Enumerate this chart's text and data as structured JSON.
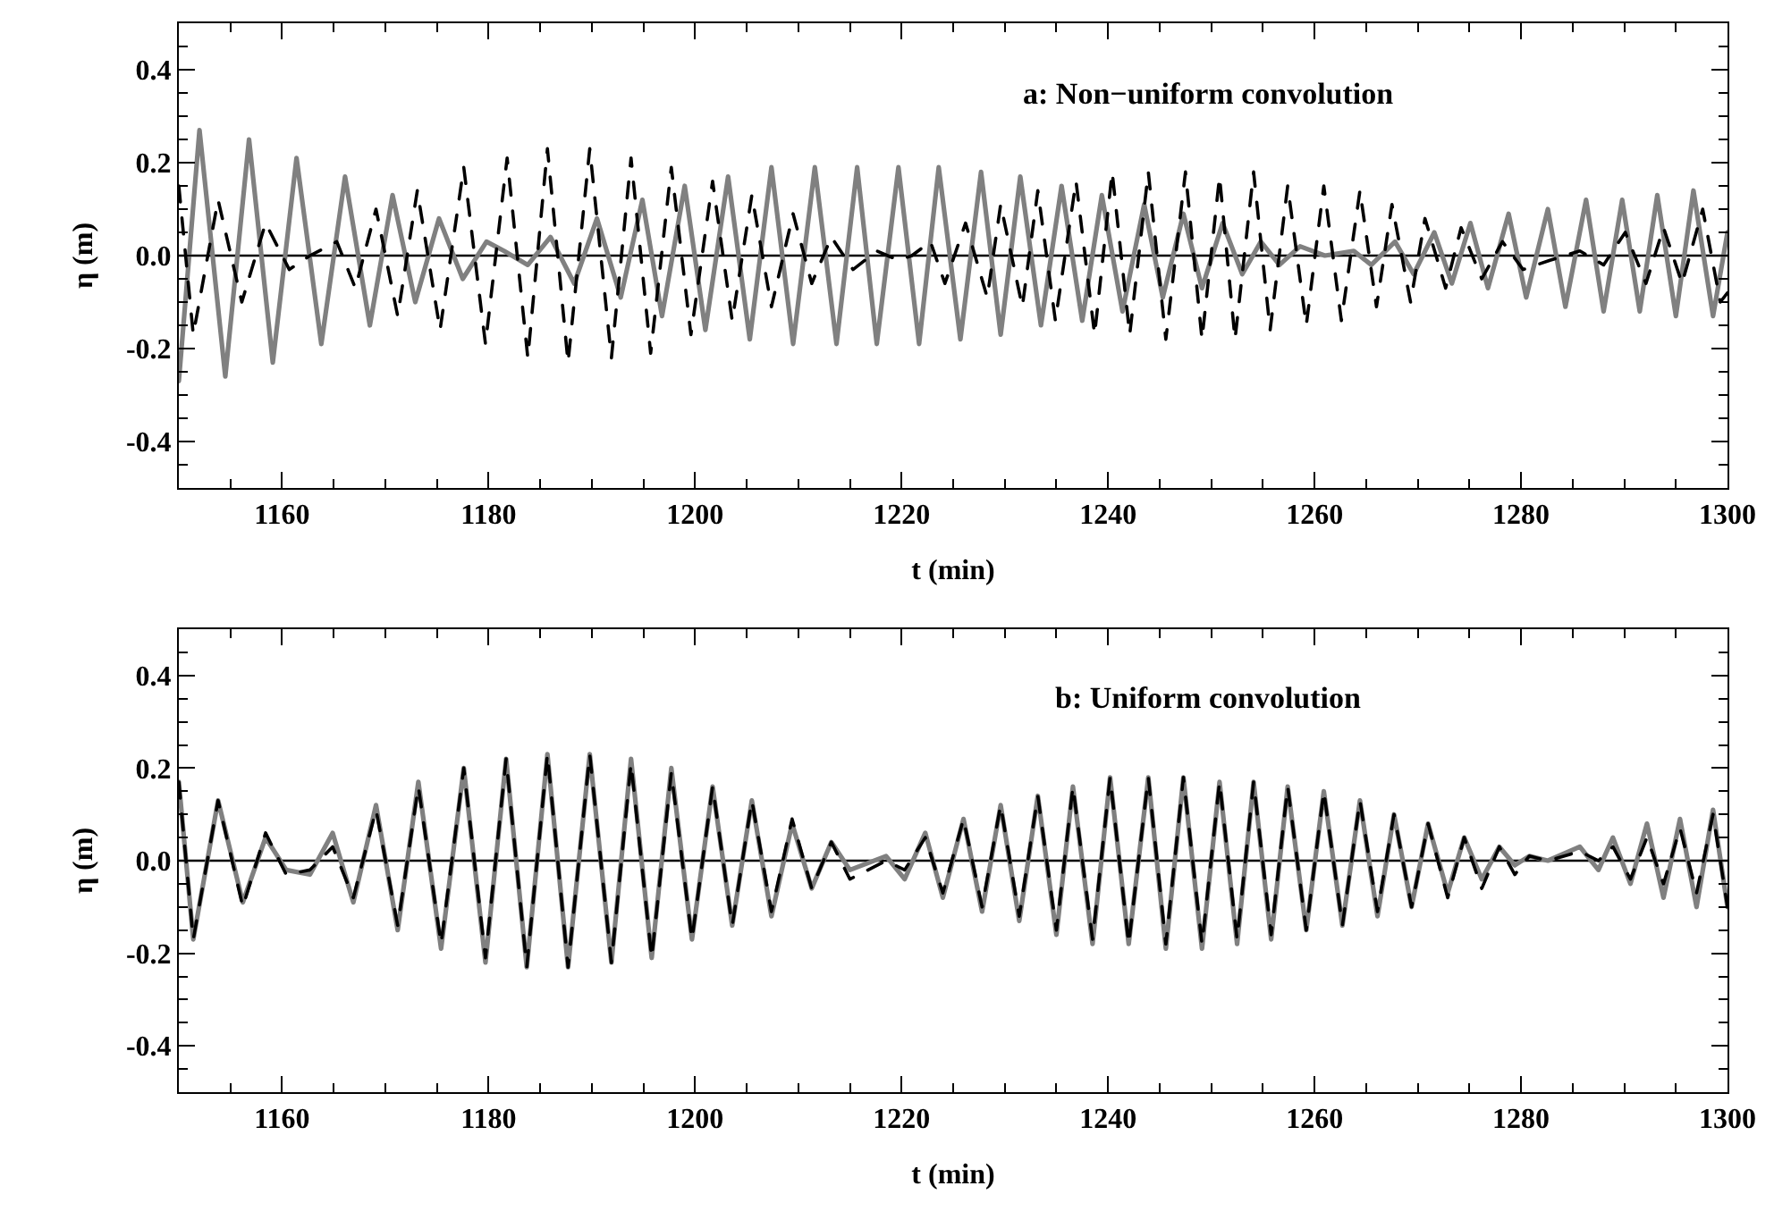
{
  "chart_data": [
    {
      "type": "line",
      "annotations": [
        "a: Non−uniform convolution"
      ],
      "xlabel": "t (min)",
      "ylabel": "η (m)",
      "xlim": [
        1150,
        1300
      ],
      "ylim": [
        -0.5,
        0.5
      ],
      "xticks": [
        {
          "value": 1155,
          "label": null
        },
        1160,
        {
          "value": 1165,
          "label": null
        },
        {
          "value": 1170,
          "label": null
        },
        {
          "value": 1175,
          "label": null
        },
        1180,
        {
          "value": 1185,
          "label": null
        },
        {
          "value": 1190,
          "label": null
        },
        {
          "value": 1195,
          "label": null
        },
        1200,
        {
          "value": 1205,
          "label": null
        },
        {
          "value": 1210,
          "label": null
        },
        {
          "value": 1215,
          "label": null
        },
        1220,
        {
          "value": 1225,
          "label": null
        },
        {
          "value": 1230,
          "label": null
        },
        {
          "value": 1235,
          "label": null
        },
        1240,
        {
          "value": 1245,
          "label": null
        },
        {
          "value": 1250,
          "label": null
        },
        {
          "value": 1255,
          "label": null
        },
        1260,
        {
          "value": 1265,
          "label": null
        },
        {
          "value": 1270,
          "label": null
        },
        {
          "value": 1275,
          "label": null
        },
        1280,
        {
          "value": 1285,
          "label": null
        },
        {
          "value": 1290,
          "label": null
        },
        {
          "value": 1295,
          "label": null
        },
        1300
      ],
      "yticks": [
        {
          "value": -0.45,
          "label": null
        },
        -0.4,
        {
          "value": -0.35,
          "label": null
        },
        {
          "value": -0.3,
          "label": null
        },
        {
          "value": -0.25,
          "label": null
        },
        -0.2,
        {
          "value": -0.15,
          "label": null
        },
        {
          "value": -0.1,
          "label": null
        },
        {
          "value": -0.05,
          "label": null
        },
        {
          "value": 0,
          "label": "0.0"
        },
        {
          "value": 0.05,
          "label": null
        },
        {
          "value": 0.1,
          "label": null
        },
        {
          "value": 0.15,
          "label": null
        },
        0.2,
        {
          "value": 0.25,
          "label": null
        },
        {
          "value": 0.3,
          "label": null
        },
        {
          "value": 0.35,
          "label": null
        },
        0.4,
        {
          "value": 0.45,
          "label": null
        }
      ],
      "ref_lines": [
        {
          "axis": "y",
          "value": 0,
          "color": "#000000"
        }
      ],
      "series": [
        {
          "color": "#808080",
          "line_style": "solid",
          "x": [
            1150,
            1152.0,
            1154.5,
            1156.8,
            1159.1,
            1161.4,
            1163.8,
            1166.1,
            1168.5,
            1170.7,
            1172.9,
            1175.2,
            1177.5,
            1179.8,
            1181.5,
            1183.8,
            1186.0,
            1188.3,
            1190.5,
            1192.8,
            1194.9,
            1196.8,
            1199.0,
            1201.0,
            1203.2,
            1205.3,
            1207.4,
            1209.5,
            1211.6,
            1213.7,
            1215.7,
            1217.6,
            1219.7,
            1221.7,
            1223.6,
            1225.7,
            1227.7,
            1229.6,
            1231.5,
            1233.5,
            1235.5,
            1237.5,
            1239.4,
            1241.4,
            1243.5,
            1245.3,
            1247.3,
            1249.1,
            1251.1,
            1253.0,
            1254.8,
            1256.6,
            1258.6,
            1261.0,
            1263.8,
            1265.5,
            1267.8,
            1269.6,
            1271.6,
            1273.3,
            1275.1,
            1276.8,
            1278.8,
            1280.5,
            1282.6,
            1284.3,
            1286.3,
            1288.0,
            1289.8,
            1291.5,
            1293.2,
            1295.0,
            1296.7,
            1298.6,
            1300
          ],
          "values": [
            -0.27,
            0.27,
            -0.26,
            0.25,
            -0.23,
            0.21,
            -0.19,
            0.17,
            -0.15,
            0.13,
            -0.1,
            0.08,
            -0.05,
            0.03,
            0.01,
            -0.02,
            0.04,
            -0.06,
            0.08,
            -0.09,
            0.12,
            -0.13,
            0.15,
            -0.16,
            0.17,
            -0.18,
            0.19,
            -0.19,
            0.19,
            -0.19,
            0.19,
            -0.19,
            0.19,
            -0.19,
            0.19,
            -0.18,
            0.18,
            -0.17,
            0.17,
            -0.15,
            0.15,
            -0.14,
            0.13,
            -0.12,
            0.11,
            -0.09,
            0.09,
            -0.07,
            0.07,
            -0.04,
            0.03,
            -0.02,
            0.02,
            0.0,
            0.01,
            -0.02,
            0.03,
            -0.04,
            0.05,
            -0.06,
            0.07,
            -0.07,
            0.09,
            -0.09,
            0.1,
            -0.11,
            0.12,
            -0.12,
            0.12,
            -0.12,
            0.13,
            -0.13,
            0.14,
            -0.13,
            0.05
          ]
        },
        {
          "color": "#000000",
          "line_style": "dashed",
          "x": [
            1150,
            1151.4,
            1153.8,
            1156.1,
            1158.4,
            1160.7,
            1162.7,
            1165.3,
            1167.1,
            1169.1,
            1171.2,
            1173.1,
            1175.3,
            1177.6,
            1179.7,
            1181.8,
            1183.8,
            1185.7,
            1187.7,
            1189.8,
            1191.9,
            1193.8,
            1195.7,
            1197.7,
            1199.6,
            1201.7,
            1203.6,
            1205.5,
            1207.4,
            1209.5,
            1211.3,
            1213.2,
            1215.3,
            1217.6,
            1219.7,
            1221.0,
            1222.8,
            1224.2,
            1226.2,
            1228.3,
            1229.6,
            1231.7,
            1233.2,
            1234.9,
            1236.9,
            1238.7,
            1240.4,
            1242.1,
            1243.9,
            1245.6,
            1247.5,
            1249.1,
            1250.8,
            1252.3,
            1254.1,
            1255.7,
            1257.4,
            1259.2,
            1260.9,
            1262.6,
            1264.4,
            1266.0,
            1267.5,
            1269.3,
            1270.7,
            1272.7,
            1274.2,
            1276.2,
            1278.2,
            1280.2,
            1282.8,
            1285.7,
            1288.0,
            1290.1,
            1292.1,
            1293.8,
            1295.6,
            1297.6,
            1299.3,
            1300
          ],
          "values": [
            0.15,
            -0.17,
            0.12,
            -0.1,
            0.07,
            -0.03,
            0.0,
            0.03,
            -0.07,
            0.1,
            -0.13,
            0.14,
            -0.16,
            0.19,
            -0.19,
            0.21,
            -0.22,
            0.23,
            -0.23,
            0.23,
            -0.22,
            0.21,
            -0.21,
            0.19,
            -0.17,
            0.16,
            -0.14,
            0.13,
            -0.11,
            0.09,
            -0.06,
            0.04,
            -0.03,
            0.01,
            -0.01,
            0.0,
            0.03,
            -0.06,
            0.07,
            -0.09,
            0.11,
            -0.11,
            0.14,
            -0.14,
            0.16,
            -0.17,
            0.18,
            -0.17,
            0.18,
            -0.18,
            0.18,
            -0.18,
            0.17,
            -0.18,
            0.18,
            -0.16,
            0.15,
            -0.15,
            0.15,
            -0.14,
            0.14,
            -0.11,
            0.11,
            -0.1,
            0.08,
            -0.07,
            0.06,
            -0.05,
            0.03,
            -0.03,
            -0.01,
            0.01,
            -0.02,
            0.05,
            -0.06,
            0.06,
            -0.06,
            0.1,
            -0.1,
            -0.08
          ]
        }
      ]
    },
    {
      "type": "line",
      "annotations": [
        "b: Uniform convolution"
      ],
      "xlabel": "t (min)",
      "ylabel": "η (m)",
      "xlim": [
        1150,
        1300
      ],
      "ylim": [
        -0.5,
        0.5
      ],
      "xticks": [
        {
          "value": 1155,
          "label": null
        },
        1160,
        {
          "value": 1165,
          "label": null
        },
        {
          "value": 1170,
          "label": null
        },
        {
          "value": 1175,
          "label": null
        },
        1180,
        {
          "value": 1185,
          "label": null
        },
        {
          "value": 1190,
          "label": null
        },
        {
          "value": 1195,
          "label": null
        },
        1200,
        {
          "value": 1205,
          "label": null
        },
        {
          "value": 1210,
          "label": null
        },
        {
          "value": 1215,
          "label": null
        },
        1220,
        {
          "value": 1225,
          "label": null
        },
        {
          "value": 1230,
          "label": null
        },
        {
          "value": 1235,
          "label": null
        },
        1240,
        {
          "value": 1245,
          "label": null
        },
        {
          "value": 1250,
          "label": null
        },
        {
          "value": 1255,
          "label": null
        },
        1260,
        {
          "value": 1265,
          "label": null
        },
        {
          "value": 1270,
          "label": null
        },
        {
          "value": 1275,
          "label": null
        },
        1280,
        {
          "value": 1285,
          "label": null
        },
        {
          "value": 1290,
          "label": null
        },
        {
          "value": 1295,
          "label": null
        },
        1300
      ],
      "yticks": [
        {
          "value": -0.45,
          "label": null
        },
        -0.4,
        {
          "value": -0.35,
          "label": null
        },
        {
          "value": -0.3,
          "label": null
        },
        {
          "value": -0.25,
          "label": null
        },
        -0.2,
        {
          "value": -0.15,
          "label": null
        },
        {
          "value": -0.1,
          "label": null
        },
        {
          "value": -0.05,
          "label": null
        },
        {
          "value": 0,
          "label": "0.0"
        },
        {
          "value": 0.05,
          "label": null
        },
        {
          "value": 0.1,
          "label": null
        },
        {
          "value": 0.15,
          "label": null
        },
        0.2,
        {
          "value": 0.25,
          "label": null
        },
        {
          "value": 0.3,
          "label": null
        },
        {
          "value": 0.35,
          "label": null
        },
        0.4,
        {
          "value": 0.45,
          "label": null
        }
      ],
      "ref_lines": [
        {
          "axis": "y",
          "value": 0,
          "color": "#000000"
        }
      ],
      "x": [
        1150,
        1151.4,
        1153.8,
        1156.2,
        1158.4,
        1160.4,
        1162.7,
        1164.9,
        1166.9,
        1169.1,
        1171.2,
        1173.2,
        1175.4,
        1177.6,
        1179.7,
        1181.7,
        1183.7,
        1185.7,
        1187.7,
        1189.8,
        1191.9,
        1193.8,
        1195.8,
        1197.7,
        1199.7,
        1201.7,
        1203.6,
        1205.5,
        1207.4,
        1209.4,
        1211.3,
        1213.2,
        1215.0,
        1218.5,
        1220.3,
        1222.3,
        1224.0,
        1226.0,
        1227.8,
        1229.6,
        1231.4,
        1233.2,
        1235.0,
        1236.6,
        1238.5,
        1240.2,
        1242.0,
        1243.9,
        1245.6,
        1247.3,
        1249.1,
        1250.8,
        1252.5,
        1254.1,
        1255.8,
        1257.4,
        1259.2,
        1260.9,
        1262.7,
        1264.4,
        1266.1,
        1267.7,
        1269.4,
        1271.0,
        1272.9,
        1274.5,
        1276.2,
        1277.9,
        1279.4,
        1280.8,
        1282.6,
        1285.7,
        1287.5,
        1288.9,
        1290.6,
        1292.2,
        1293.8,
        1295.4,
        1297.0,
        1298.6,
        1300
      ],
      "series": [
        {
          "color": "#808080",
          "line_style": "solid",
          "values": [
            0.17,
            -0.17,
            0.13,
            -0.09,
            0.05,
            -0.02,
            -0.03,
            0.06,
            -0.09,
            0.12,
            -0.15,
            0.17,
            -0.19,
            0.2,
            -0.22,
            0.22,
            -0.23,
            0.23,
            -0.23,
            0.23,
            -0.22,
            0.22,
            -0.21,
            0.2,
            -0.17,
            0.16,
            -0.14,
            0.13,
            -0.12,
            0.08,
            -0.06,
            0.04,
            -0.02,
            0.01,
            -0.04,
            0.06,
            -0.08,
            0.09,
            -0.11,
            0.12,
            -0.13,
            0.14,
            -0.16,
            0.16,
            -0.18,
            0.18,
            -0.18,
            0.18,
            -0.19,
            0.18,
            -0.19,
            0.17,
            -0.18,
            0.17,
            -0.17,
            0.16,
            -0.15,
            0.15,
            -0.14,
            0.13,
            -0.12,
            0.1,
            -0.1,
            0.08,
            -0.07,
            0.05,
            -0.04,
            0.03,
            -0.01,
            0.01,
            0.0,
            0.03,
            -0.02,
            0.05,
            -0.05,
            0.08,
            -0.08,
            0.09,
            -0.1,
            0.11,
            -0.1
          ]
        },
        {
          "color": "#000000",
          "line_style": "dashed",
          "values": [
            0.17,
            -0.17,
            0.13,
            -0.1,
            0.06,
            -0.03,
            -0.02,
            0.03,
            -0.08,
            0.11,
            -0.14,
            0.16,
            -0.18,
            0.2,
            -0.21,
            0.22,
            -0.23,
            0.23,
            -0.23,
            0.23,
            -0.22,
            0.21,
            -0.21,
            0.19,
            -0.17,
            0.16,
            -0.14,
            0.13,
            -0.11,
            0.09,
            -0.06,
            0.04,
            -0.04,
            0.0,
            -0.02,
            0.05,
            -0.07,
            0.09,
            -0.1,
            0.12,
            -0.12,
            0.14,
            -0.15,
            0.16,
            -0.17,
            0.18,
            -0.18,
            0.18,
            -0.18,
            0.18,
            -0.18,
            0.17,
            -0.17,
            0.17,
            -0.16,
            0.16,
            -0.15,
            0.15,
            -0.14,
            0.13,
            -0.11,
            0.1,
            -0.1,
            0.08,
            -0.08,
            0.05,
            -0.06,
            0.03,
            -0.03,
            0.01,
            0.0,
            0.02,
            0.0,
            0.03,
            -0.04,
            0.05,
            -0.05,
            0.07,
            -0.07,
            0.1,
            -0.1
          ]
        }
      ]
    }
  ]
}
